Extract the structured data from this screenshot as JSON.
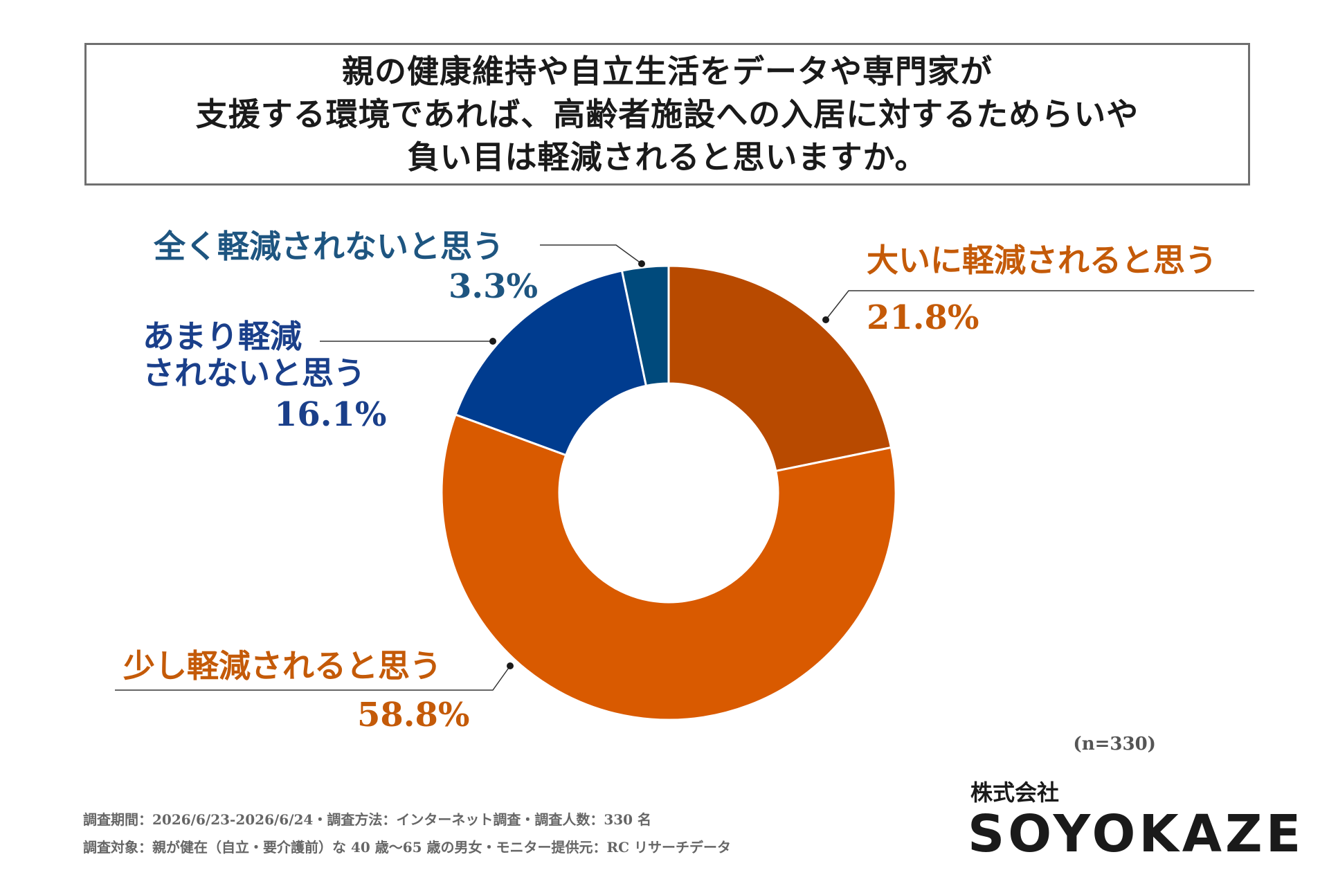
{
  "title": {
    "lines": [
      "親の健康維持や自立生活をデータや専門家が",
      "支援する環境であれば、高齢者施設への入居に対するためらいや",
      "負い目は軽減されると思いますか。"
    ]
  },
  "chart_data": {
    "type": "pie",
    "donut": true,
    "categories": [
      "大いに軽減されると思う",
      "少し軽減されると思う",
      "あまり軽減されないと思う",
      "全く軽減されないと思う"
    ],
    "values": [
      21.8,
      58.8,
      16.1,
      3.3
    ],
    "value_labels": [
      "21.8%",
      "58.8%",
      "16.1%",
      "3.3%"
    ],
    "label_lines": [
      [
        "大いに軽減されると思う"
      ],
      [
        "少し軽減されると思う"
      ],
      [
        "あまり軽減",
        "されないと思う"
      ],
      [
        "全く軽減されないと思う"
      ]
    ],
    "colors": [
      "#b84a00",
      "#d95a00",
      "#003c8f",
      "#004a7c"
    ],
    "start_angle": "12 o'clock",
    "direction": "clockwise"
  },
  "sample_size": "(n=330)",
  "footer": {
    "line1": "調査期間：2026/6/23-2026/6/24・調査方法：インターネット調査・調査人数：330 名",
    "line2": "調査対象：親が健在（自立・要介護前）な 40 歳〜65 歳の男女・モニター提供元：RC リサーチデータ"
  },
  "logo": {
    "sub": "株式会社",
    "main": "SOYOKAZE"
  }
}
